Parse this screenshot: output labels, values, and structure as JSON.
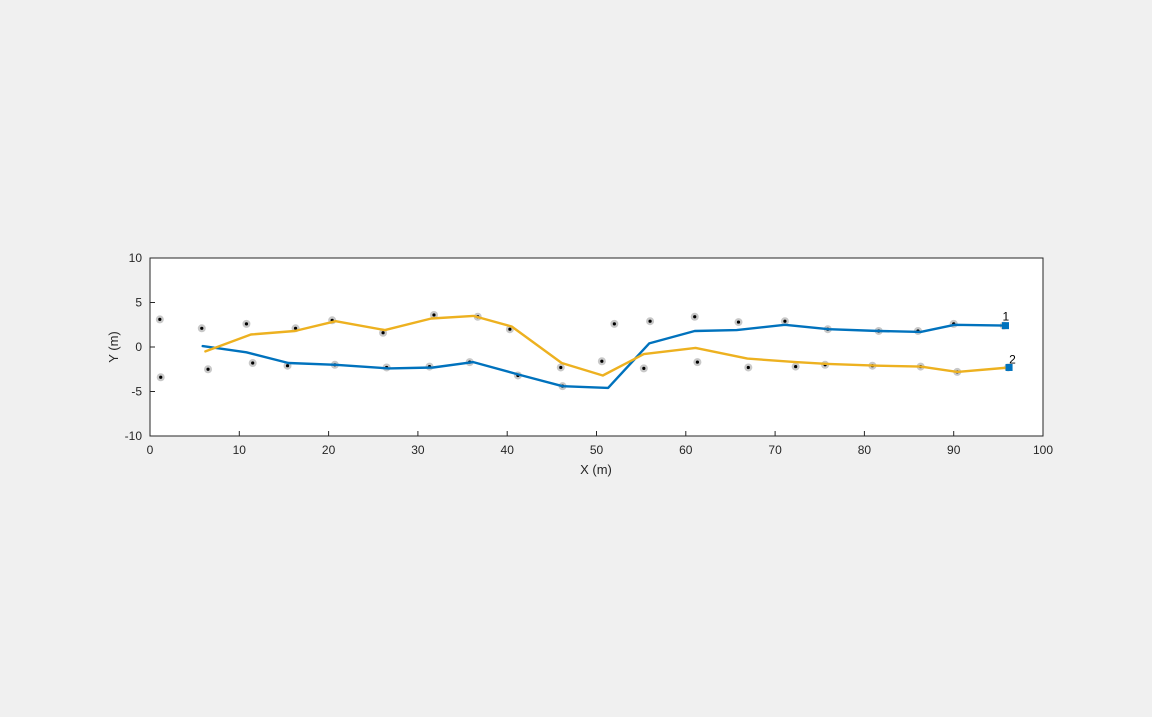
{
  "chart_data": {
    "type": "line",
    "xlabel": "X (m)",
    "ylabel": "Y (m)",
    "xlim": [
      0,
      100
    ],
    "ylim": [
      -10,
      10
    ],
    "xticks": [
      0,
      10,
      20,
      30,
      40,
      50,
      60,
      70,
      80,
      90,
      100
    ],
    "yticks": [
      -10,
      -5,
      0,
      5,
      10
    ],
    "grid": false,
    "legend": "none",
    "colors": {
      "figure_background": "#f0f0f0",
      "axes_background": "#ffffff",
      "axis": "#262626",
      "series_1": "#0072bd",
      "series_2": "#edb120",
      "marker_halo": "#c8c8c8",
      "marker_dot": "#000000"
    },
    "series": [
      {
        "label": "1",
        "x": [
          5.9,
          10.8,
          15.5,
          20.8,
          26.7,
          31.7,
          36.2,
          41.3,
          46.2,
          51.3,
          55.9,
          61.0,
          65.7,
          71.1,
          76.0,
          81.6,
          86.3,
          90.1,
          95.8
        ],
        "y": [
          0.1,
          -0.6,
          -1.8,
          -2.0,
          -2.4,
          -2.3,
          -1.7,
          -3.1,
          -4.4,
          -4.6,
          0.4,
          1.8,
          1.9,
          2.5,
          2.0,
          1.8,
          1.7,
          2.5,
          2.4
        ]
      },
      {
        "label": "2",
        "x": [
          6.2,
          11.3,
          16.2,
          20.8,
          26.3,
          31.5,
          36.2,
          40.5,
          46.1,
          50.7,
          55.3,
          61.1,
          66.9,
          72.3,
          75.9,
          81.5,
          86.3,
          90.4,
          96.2
        ],
        "y": [
          -0.5,
          1.4,
          1.8,
          2.9,
          1.9,
          3.2,
          3.5,
          2.3,
          -1.8,
          -3.2,
          -0.8,
          -0.1,
          -1.3,
          -1.7,
          -1.9,
          -2.1,
          -2.2,
          -2.8,
          -2.3
        ]
      }
    ],
    "detections": {
      "x": [
        1.1,
        5.8,
        10.8,
        16.3,
        20.4,
        26.1,
        31.8,
        36.7,
        40.3,
        1.2,
        6.5,
        11.5,
        15.4,
        20.7,
        26.5,
        31.3,
        35.8,
        41.2,
        46.0,
        50.6,
        52.0,
        56.0,
        61.0,
        65.9,
        71.1,
        75.9,
        81.6,
        86.0,
        90.0,
        95.6,
        46.2,
        55.3,
        61.3,
        67.0,
        72.3,
        75.6,
        80.9,
        86.3,
        90.4,
        96.1
      ],
      "y": [
        3.1,
        2.1,
        2.6,
        2.1,
        3.0,
        1.6,
        3.6,
        3.4,
        2.0,
        -3.4,
        -2.5,
        -1.8,
        -2.1,
        -2.0,
        -2.3,
        -2.2,
        -1.7,
        -3.2,
        -2.3,
        -1.6,
        2.6,
        2.9,
        3.4,
        2.8,
        2.9,
        2.0,
        1.8,
        1.8,
        2.6,
        2.4,
        -4.4,
        -2.4,
        -1.7,
        -2.3,
        -2.2,
        -2.0,
        -2.1,
        -2.2,
        -2.8,
        -2.3
      ]
    }
  }
}
